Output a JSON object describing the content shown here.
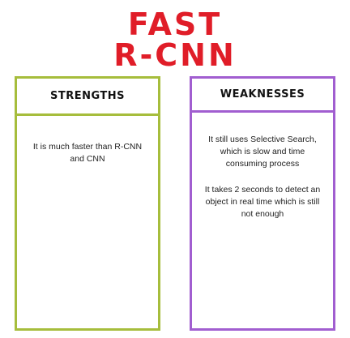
{
  "title": {
    "line1": "FAST",
    "line2": "R-CNN"
  },
  "strengths": {
    "heading": "STRENGTHS",
    "points": [
      "It is much faster than R-CNN and CNN"
    ]
  },
  "weaknesses": {
    "heading": "WEAKNESSES",
    "points": [
      "It still uses Selective Search, which is slow and time consuming process",
      "It takes 2 seconds to detect an object in real time which is still not enough"
    ]
  },
  "colors": {
    "title": "#e01d28",
    "strengths_border": "#a6bd3c",
    "weaknesses_border": "#a15ed0"
  }
}
